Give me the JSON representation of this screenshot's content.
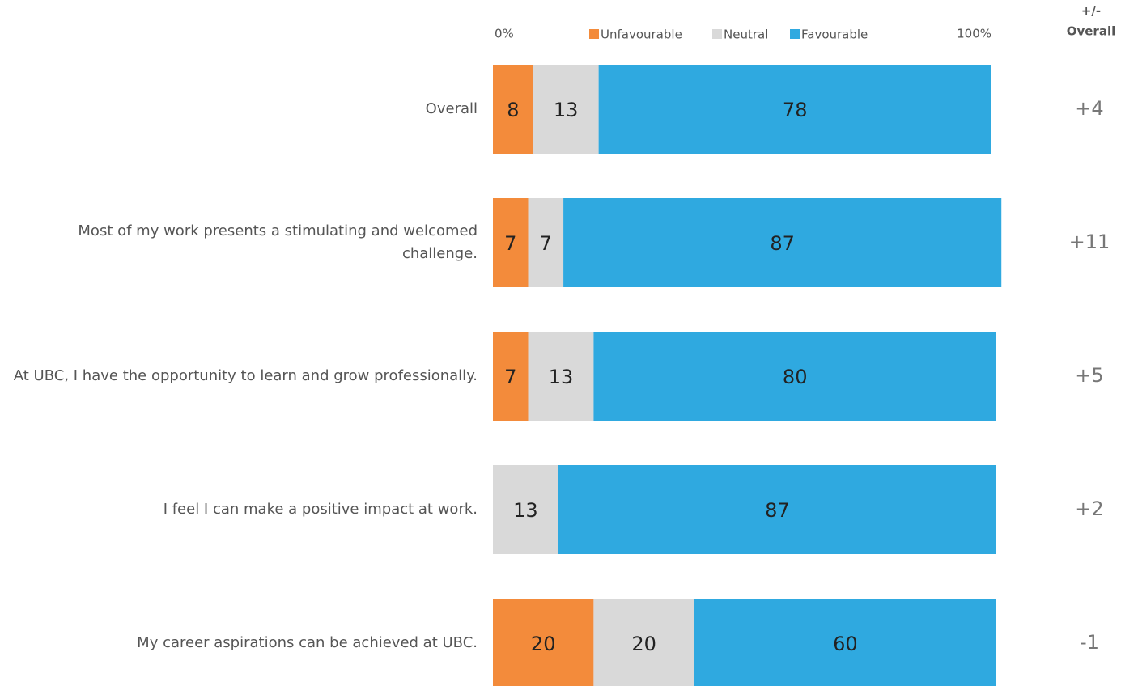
{
  "chart_data": {
    "type": "stacked_bar_horizontal",
    "categories": [
      "Overall",
      "Most of my work presents a stimulating and welcomed challenge.",
      "At UBC, I have the opportunity to learn and grow professionally.",
      "I feel I can make a positive impact at work.",
      "My career aspirations can be achieved at UBC."
    ],
    "series": [
      {
        "name": "Unfavourable",
        "color": "#f38b3b",
        "values": [
          8,
          7,
          7,
          null,
          20
        ]
      },
      {
        "name": "Neutral",
        "color": "#d9d9d9",
        "values": [
          13,
          7,
          13,
          13,
          20
        ]
      },
      {
        "name": "Favourable",
        "color": "#2fa9e0",
        "values": [
          78,
          87,
          80,
          87,
          60
        ]
      }
    ],
    "xlim": [
      0,
      100
    ],
    "xticks": [
      {
        "value": 0,
        "label": "0%"
      },
      {
        "value": 100,
        "label": "100%"
      }
    ],
    "legend": "top",
    "comparison": {
      "title": [
        "+/-",
        "Overall"
      ],
      "values": [
        4,
        11,
        5,
        2,
        -1
      ],
      "value_labels": [
        "+4",
        "+11",
        "+5",
        "+2",
        "-1"
      ]
    }
  }
}
